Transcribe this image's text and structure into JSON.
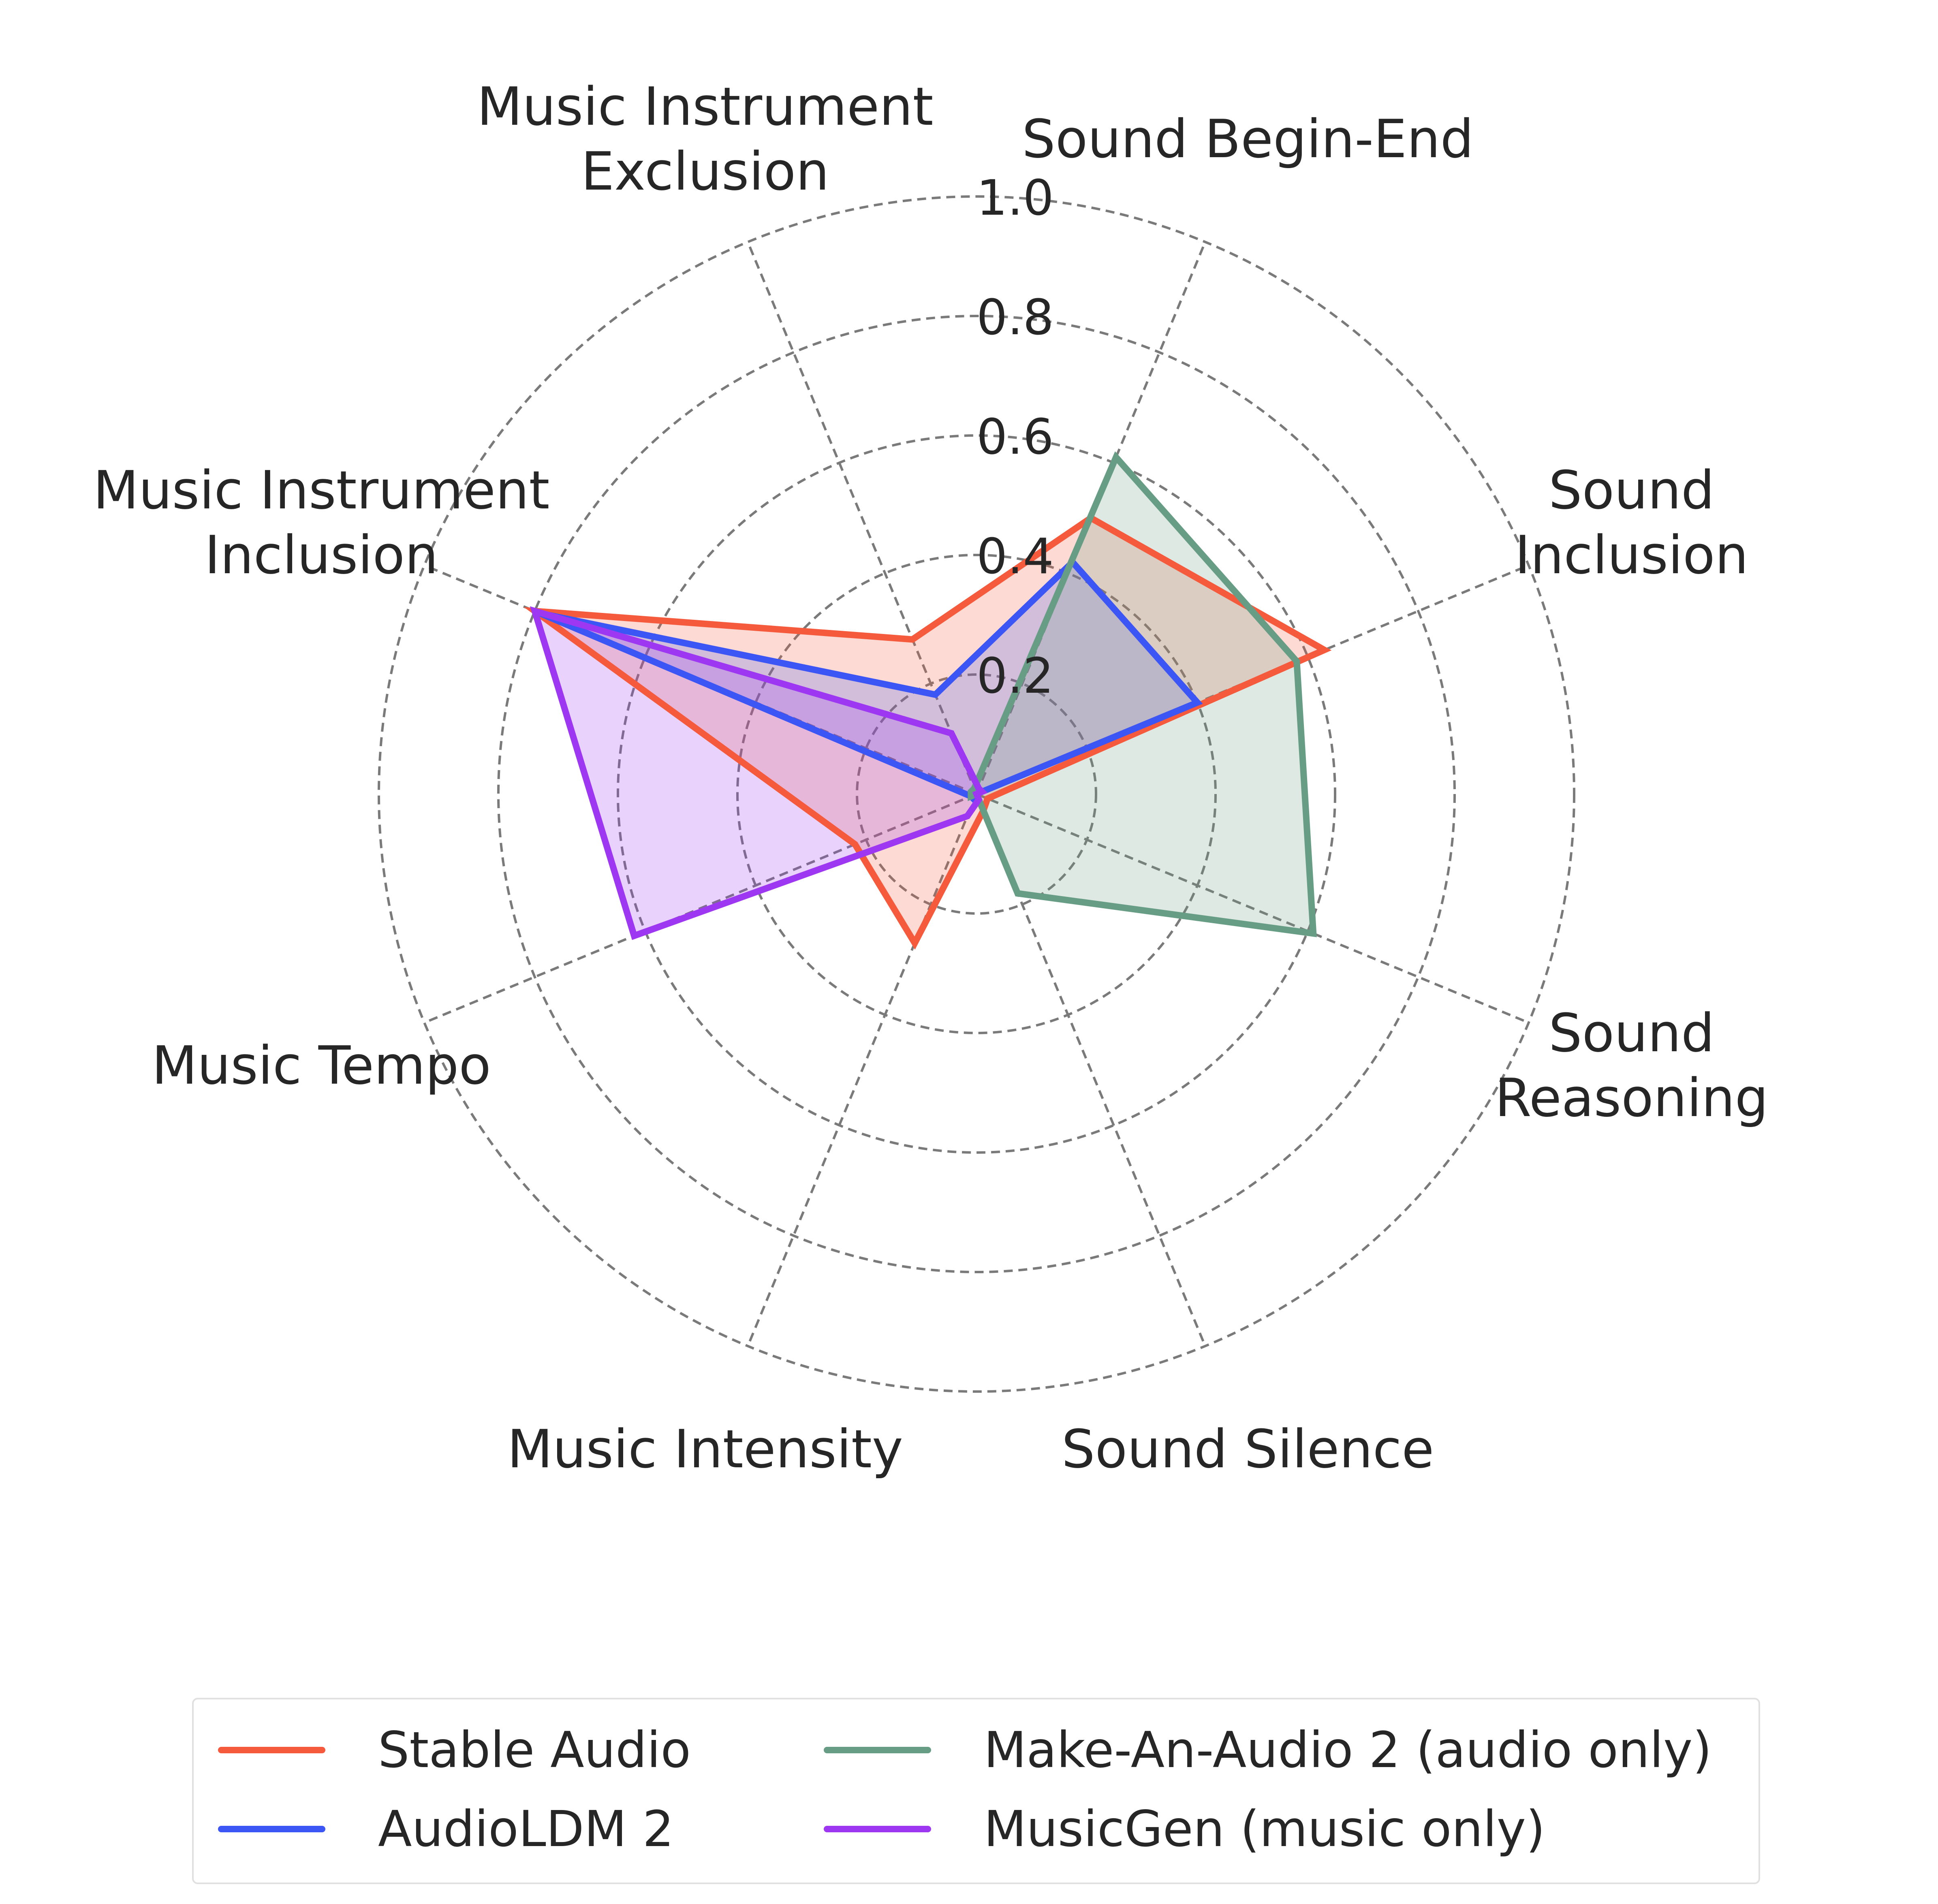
{
  "chart_data": {
    "type": "radar",
    "title": "",
    "categories": [
      "Sound Begin-End",
      "Sound Inclusion",
      "Sound Reasoning",
      "Sound Silence",
      "Music Intensity",
      "Music Tempo",
      "Music Instrument\nInclusion",
      "Music Instrument\nExclusion"
    ],
    "rlim": [
      0,
      1.0
    ],
    "rticks": [
      "0.2",
      "0.4",
      "0.6",
      "0.8",
      "1.0"
    ],
    "grid": true,
    "legend_position": "bottom",
    "series": [
      {
        "name": "Stable Audio",
        "color": "#f65a3c",
        "values": [
          0.5,
          0.63,
          0.02,
          0.03,
          0.27,
          0.22,
          0.8,
          0.28
        ]
      },
      {
        "name": "AudioLDM 2",
        "color": "#3c55f5",
        "values": [
          0.42,
          0.4,
          0.0,
          0.01,
          0.01,
          0.01,
          0.79,
          0.18
        ]
      },
      {
        "name": "Make-An-Audio 2 (audio only)",
        "color": "#679d85",
        "values": [
          0.61,
          0.58,
          0.61,
          0.18,
          0.0,
          0.01,
          0.01,
          0.01
        ]
      },
      {
        "name": "MusicGen (music only)",
        "color": "#9d37f2",
        "values": [
          0.01,
          0.01,
          0.0,
          0.01,
          0.04,
          0.62,
          0.8,
          0.11
        ]
      }
    ]
  }
}
